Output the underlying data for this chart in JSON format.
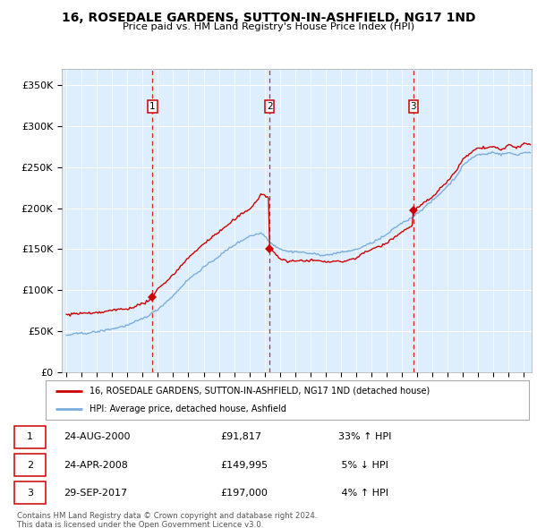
{
  "title": "16, ROSEDALE GARDENS, SUTTON-IN-ASHFIELD, NG17 1ND",
  "subtitle": "Price paid vs. HM Land Registry's House Price Index (HPI)",
  "legend_line1": "16, ROSEDALE GARDENS, SUTTON-IN-ASHFIELD, NG17 1ND (detached house)",
  "legend_line2": "HPI: Average price, detached house, Ashfield",
  "footer1": "Contains HM Land Registry data © Crown copyright and database right 2024.",
  "footer2": "This data is licensed under the Open Government Licence v3.0.",
  "row_data": [
    [
      "1",
      "24-AUG-2000",
      "£91,817",
      "33% ↑ HPI"
    ],
    [
      "2",
      "24-APR-2008",
      "£149,995",
      " 5% ↓ HPI"
    ],
    [
      "3",
      "29-SEP-2017",
      "£197,000",
      " 4% ↑ HPI"
    ]
  ],
  "t1": 2000.646,
  "t2": 2008.315,
  "t3": 2017.747,
  "p1": 91817,
  "p2": 149995,
  "p3": 197000,
  "hpi_color": "#7aaddd",
  "property_color": "#cc0000",
  "plot_bg": "#ddeeff",
  "vline_color": "#cc0000",
  "ylim": [
    0,
    370000
  ],
  "yticks": [
    0,
    50000,
    100000,
    150000,
    200000,
    250000,
    300000,
    350000
  ],
  "ytick_labels": [
    "£0",
    "£50K",
    "£100K",
    "£150K",
    "£200K",
    "£250K",
    "£300K",
    "£350K"
  ],
  "xlim_start": 1994.7,
  "xlim_end": 2025.5
}
